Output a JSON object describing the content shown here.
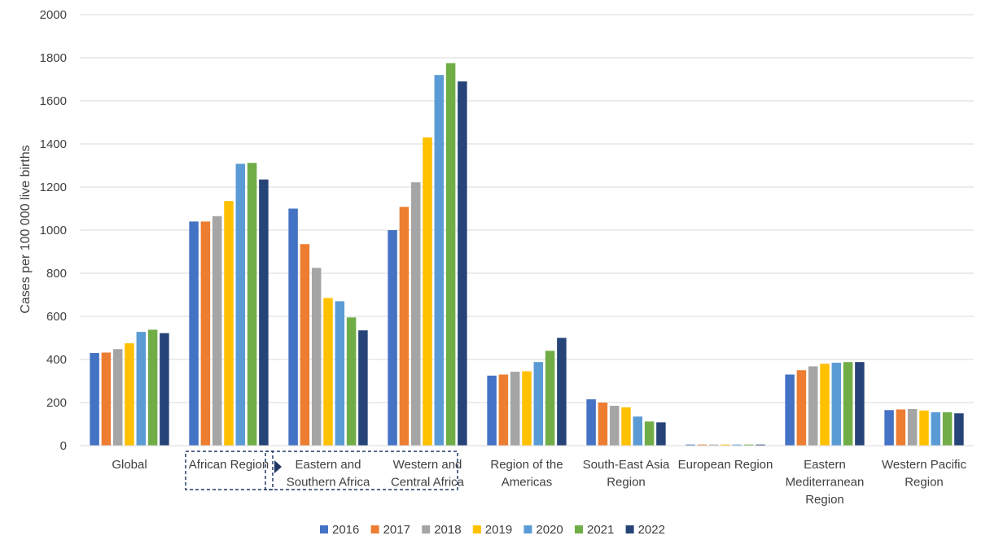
{
  "chart_data": {
    "type": "bar",
    "title": "",
    "xlabel": "",
    "ylabel": "Cases per 100 000 live births",
    "ylim": [
      0,
      2000
    ],
    "yticks": [
      0,
      200,
      400,
      600,
      800,
      1000,
      1200,
      1400,
      1600,
      1800,
      2000
    ],
    "ytick_labels": [
      "0",
      "200",
      "400",
      "600",
      "800",
      "1000",
      "1200",
      "1400",
      "1600",
      "1800",
      "2000"
    ],
    "grid": true,
    "legend_position": "bottom",
    "categories": [
      "Global",
      "African Region",
      "Eastern and Southern Africa",
      "Western and Central Africa",
      "Region of the Americas",
      "South-East Asia Region",
      "European Region",
      "Eastern Mediterranean Region",
      "Western Pacific Region"
    ],
    "category_label_lines": [
      [
        "Global"
      ],
      [
        "African Region"
      ],
      [
        "Eastern and",
        "Southern Africa"
      ],
      [
        "Western and",
        "Central Africa"
      ],
      [
        "Region of the",
        "Americas"
      ],
      [
        "South-East Asia",
        "Region"
      ],
      [
        "European Region"
      ],
      [
        "Eastern",
        "Mediterranean",
        "Region"
      ],
      [
        "Western Pacific",
        "Region"
      ]
    ],
    "series": [
      {
        "name": "2016",
        "color": "#4472C4",
        "values": [
          430,
          1040,
          1100,
          1000,
          325,
          215,
          5,
          330,
          165
        ]
      },
      {
        "name": "2017",
        "color": "#ED7D31",
        "values": [
          432,
          1040,
          935,
          1108,
          330,
          200,
          5,
          350,
          168
        ]
      },
      {
        "name": "2018",
        "color": "#A5A5A5",
        "values": [
          448,
          1065,
          825,
          1222,
          343,
          185,
          5,
          368,
          170
        ]
      },
      {
        "name": "2019",
        "color": "#FFC000",
        "values": [
          475,
          1135,
          685,
          1430,
          345,
          178,
          5,
          380,
          163
        ]
      },
      {
        "name": "2020",
        "color": "#5B9BD5",
        "values": [
          528,
          1308,
          670,
          1720,
          388,
          135,
          5,
          385,
          155
        ]
      },
      {
        "name": "2021",
        "color": "#70AD47",
        "values": [
          538,
          1312,
          595,
          1775,
          440,
          112,
          5,
          388,
          155
        ]
      },
      {
        "name": "2022",
        "color": "#264478",
        "values": [
          522,
          1235,
          535,
          1690,
          500,
          108,
          5,
          388,
          150
        ]
      }
    ],
    "annotations": {
      "grouping_boxes": true,
      "grouping_arrow": true,
      "box_color": "#1F3864"
    }
  }
}
